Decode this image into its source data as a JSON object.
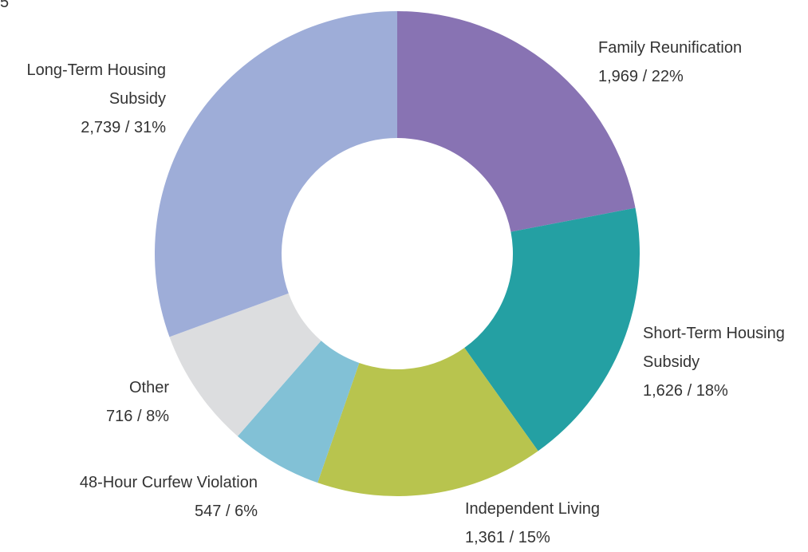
{
  "chart_data": {
    "type": "donut",
    "annotation": "5",
    "categories": [
      "Family Reunification",
      "Short-Term Housing Subsidy",
      "Independent Living",
      "48-Hour Curfew Violation",
      "Other",
      "Long-Term Housing Subsidy"
    ],
    "values": [
      1969,
      1626,
      1361,
      547,
      716,
      2739
    ],
    "value_labels": [
      "1,969 / 22%",
      "1,626 / 18%",
      "1,361 / 15%",
      "547 / 6%",
      "716 / 8%",
      "2,739 / 31%"
    ],
    "colors": [
      "#8873b3",
      "#24a0a3",
      "#b8c44e",
      "#82c1d6",
      "#dcdddf",
      "#9eadd8"
    ]
  }
}
